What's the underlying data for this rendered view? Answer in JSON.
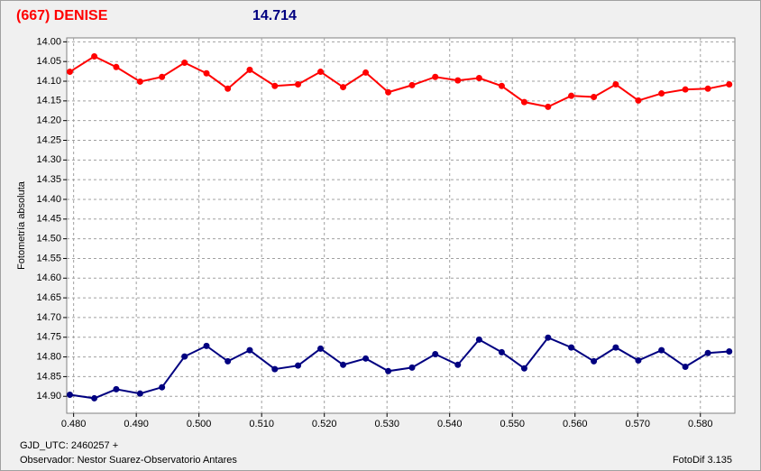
{
  "chart_data": {
    "type": "line",
    "title": "(667) DENISE",
    "subtitle": "14.714",
    "y_label": "Fotometría absoluta",
    "x_label": "GJD_UTC: 2460257 +",
    "observer": "Observador: Nestor Suarez-Observatorio Antares",
    "software": "FotoDif 3.135",
    "grid": true,
    "x": [
      0.4794,
      0.4833,
      0.4868,
      0.4906,
      0.4941,
      0.4977,
      0.5012,
      0.5046,
      0.5081,
      0.5121,
      0.5158,
      0.5194,
      0.523,
      0.5266,
      0.5302,
      0.534,
      0.5377,
      0.5413,
      0.5447,
      0.5483,
      0.5519,
      0.5557,
      0.5594,
      0.563,
      0.5665,
      0.5701,
      0.5738,
      0.5776,
      0.5812,
      0.5846
    ],
    "series": [
      {
        "color": "#ff0000",
        "values": [
          14.076,
          14.037,
          14.064,
          14.101,
          14.089,
          14.053,
          14.08,
          14.119,
          14.071,
          14.112,
          14.108,
          14.076,
          14.115,
          14.078,
          14.128,
          14.11,
          14.089,
          14.098,
          14.092,
          14.112,
          14.153,
          14.165,
          14.137,
          14.14,
          14.108,
          14.149,
          14.131,
          14.121,
          14.119,
          14.108
        ]
      },
      {
        "color": "#000080",
        "values": [
          14.896,
          14.905,
          14.882,
          14.893,
          14.877,
          14.799,
          14.772,
          14.811,
          14.783,
          14.831,
          14.822,
          14.779,
          14.82,
          14.804,
          14.836,
          14.827,
          14.793,
          14.82,
          14.756,
          14.788,
          14.829,
          14.751,
          14.776,
          14.811,
          14.776,
          14.809,
          14.783,
          14.825,
          14.79,
          14.786
        ]
      }
    ],
    "xlim": [
      0.4789,
      0.5855
    ],
    "ylim": [
      14.943,
      13.99
    ],
    "xticks": [
      {
        "value": 0.48,
        "label": "0.480"
      },
      {
        "value": 0.49,
        "label": "0.490"
      },
      {
        "value": 0.5,
        "label": "0.500"
      },
      {
        "value": 0.51,
        "label": "0.510"
      },
      {
        "value": 0.52,
        "label": "0.520"
      },
      {
        "value": 0.53,
        "label": "0.530"
      },
      {
        "value": 0.54,
        "label": "0.540"
      },
      {
        "value": 0.55,
        "label": "0.550"
      },
      {
        "value": 0.56,
        "label": "0.560"
      },
      {
        "value": 0.57,
        "label": "0.570"
      },
      {
        "value": 0.58,
        "label": "0.580"
      }
    ],
    "yticks": [
      {
        "value": 14.0,
        "label": "14.00"
      },
      {
        "value": 14.05,
        "label": "14.05"
      },
      {
        "value": 14.1,
        "label": "14.10"
      },
      {
        "value": 14.15,
        "label": "14.15"
      },
      {
        "value": 14.2,
        "label": "14.20"
      },
      {
        "value": 14.25,
        "label": "14.25"
      },
      {
        "value": 14.3,
        "label": "14.30"
      },
      {
        "value": 14.35,
        "label": "14.35"
      },
      {
        "value": 14.4,
        "label": "14.40"
      },
      {
        "value": 14.45,
        "label": "14.45"
      },
      {
        "value": 14.5,
        "label": "14.50"
      },
      {
        "value": 14.55,
        "label": "14.55"
      },
      {
        "value": 14.6,
        "label": "14.60"
      },
      {
        "value": 14.65,
        "label": "14.65"
      },
      {
        "value": 14.7,
        "label": "14.70"
      },
      {
        "value": 14.75,
        "label": "14.75"
      },
      {
        "value": 14.8,
        "label": "14.80"
      },
      {
        "value": 14.85,
        "label": "14.85"
      },
      {
        "value": 14.9,
        "label": "14.90"
      }
    ]
  }
}
